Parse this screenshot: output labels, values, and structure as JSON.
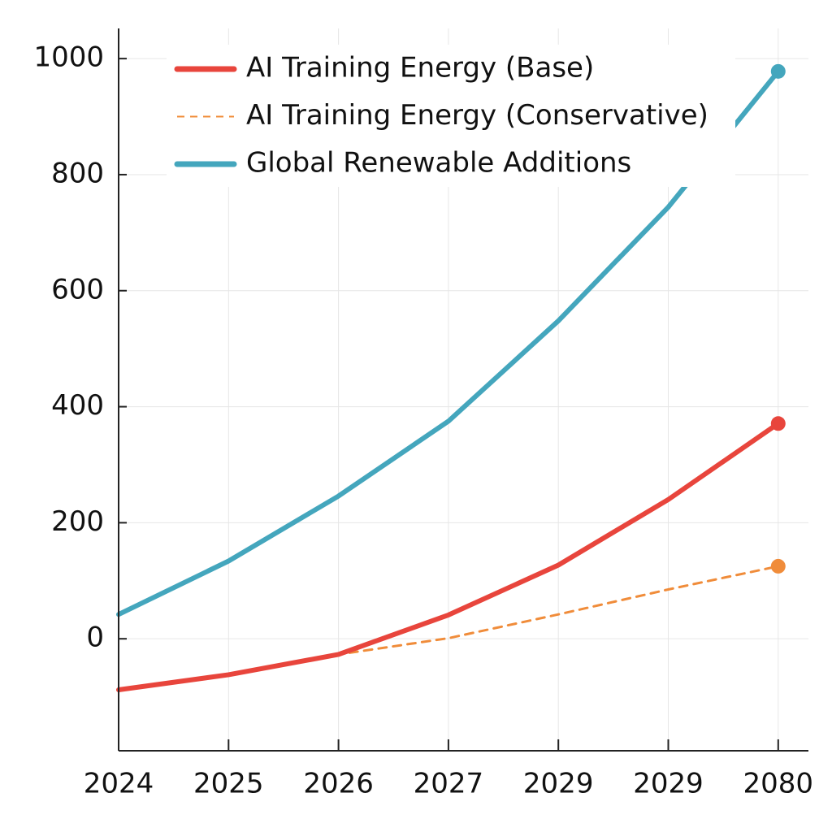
{
  "chart_data": {
    "type": "line",
    "categories": [
      "2024",
      "2025",
      "2026",
      "2027",
      "2029",
      "2029",
      "2080"
    ],
    "series": [
      {
        "name": "AI Training Energy (Base)",
        "color": "#e8453c",
        "dash": false,
        "values": [
          -88,
          -62,
          -27,
          41,
          127,
          240,
          371
        ]
      },
      {
        "name": "AI Training Energy (Conservative)",
        "color": "#f08c3a",
        "dash": true,
        "values": [
          -88,
          -62,
          -27,
          1,
          42,
          85,
          125
        ]
      },
      {
        "name": "Global Renewable Additions",
        "color": "#44a6bd",
        "dash": false,
        "values": [
          42,
          134,
          246,
          375,
          548,
          744,
          978
        ]
      }
    ],
    "ylim": [
      -193,
      1052
    ],
    "yticks": [
      0,
      200,
      400,
      600,
      800,
      1000
    ],
    "grid": true
  }
}
